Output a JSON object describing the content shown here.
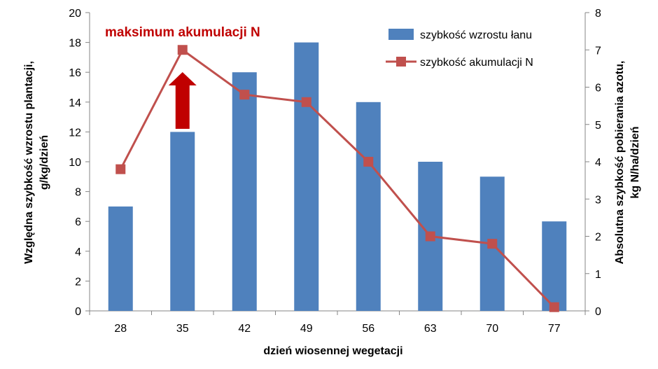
{
  "chart_data": {
    "type": "bar+line",
    "categories": [
      "28",
      "35",
      "42",
      "49",
      "56",
      "63",
      "70",
      "77"
    ],
    "series": [
      {
        "name": "szybkość wzrostu łanu",
        "type": "bar",
        "axis": "left",
        "values": [
          7,
          12,
          16,
          18,
          14,
          10,
          9,
          6
        ],
        "color": "#4f81bd"
      },
      {
        "name": "szybkość akumulacji N",
        "type": "line",
        "axis": "right",
        "values": [
          3.8,
          7.0,
          5.8,
          5.6,
          4.0,
          2.0,
          1.8,
          0.1
        ],
        "color": "#c0504d"
      }
    ],
    "xlabel": "dzień wiosennej wegetacji",
    "ylabel_left": [
      "Względna szybkość wzrostu plantacji,",
      "g/kg/dzień"
    ],
    "ylabel_right": [
      "Absolutna szybkość pobierania azotu,",
      "kg N/ha/dzień"
    ],
    "ylim_left": [
      0,
      20
    ],
    "ylim_right": [
      0,
      8
    ],
    "yticks_left": [
      "0",
      "2",
      "4",
      "6",
      "8",
      "10",
      "12",
      "14",
      "16",
      "18",
      "20"
    ],
    "yticks_right": [
      "0",
      "1",
      "2",
      "3",
      "4",
      "5",
      "6",
      "7",
      "8"
    ],
    "annotation": {
      "text": "maksimum akumulacji N",
      "color": "#c00000",
      "arrow_category": "35",
      "arrow_direction": "up"
    },
    "legend_position": "top-right",
    "grid": false
  }
}
